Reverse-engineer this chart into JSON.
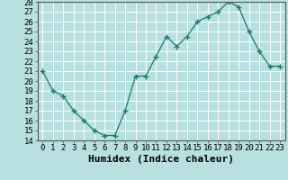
{
  "x": [
    0,
    1,
    2,
    3,
    4,
    5,
    6,
    7,
    8,
    9,
    10,
    11,
    12,
    13,
    14,
    15,
    16,
    17,
    18,
    19,
    20,
    21,
    22,
    23
  ],
  "y": [
    21,
    19,
    18.5,
    17,
    16,
    15,
    14.5,
    14.5,
    17,
    20.5,
    20.5,
    22.5,
    24.5,
    23.5,
    24.5,
    26,
    26.5,
    27,
    28,
    27.5,
    25,
    23,
    21.5,
    21.5
  ],
  "xlabel": "Humidex (Indice chaleur)",
  "xlim": [
    -0.5,
    23.5
  ],
  "ylim": [
    14,
    28
  ],
  "yticks": [
    14,
    15,
    16,
    17,
    18,
    19,
    20,
    21,
    22,
    23,
    24,
    25,
    26,
    27,
    28
  ],
  "xticks": [
    0,
    1,
    2,
    3,
    4,
    5,
    6,
    7,
    8,
    9,
    10,
    11,
    12,
    13,
    14,
    15,
    16,
    17,
    18,
    19,
    20,
    21,
    22,
    23
  ],
  "xtick_labels": [
    "0",
    "1",
    "2",
    "3",
    "4",
    "5",
    "6",
    "7",
    "8",
    "9",
    "10",
    "11",
    "12",
    "13",
    "14",
    "15",
    "16",
    "17",
    "18",
    "19",
    "20",
    "21",
    "22",
    "23"
  ],
  "line_color": "#1a7a6e",
  "marker": "+",
  "bg_color": "#b8e0e0",
  "grid_color": "#ffffff",
  "tick_fontsize": 6.5,
  "xlabel_fontsize": 8
}
